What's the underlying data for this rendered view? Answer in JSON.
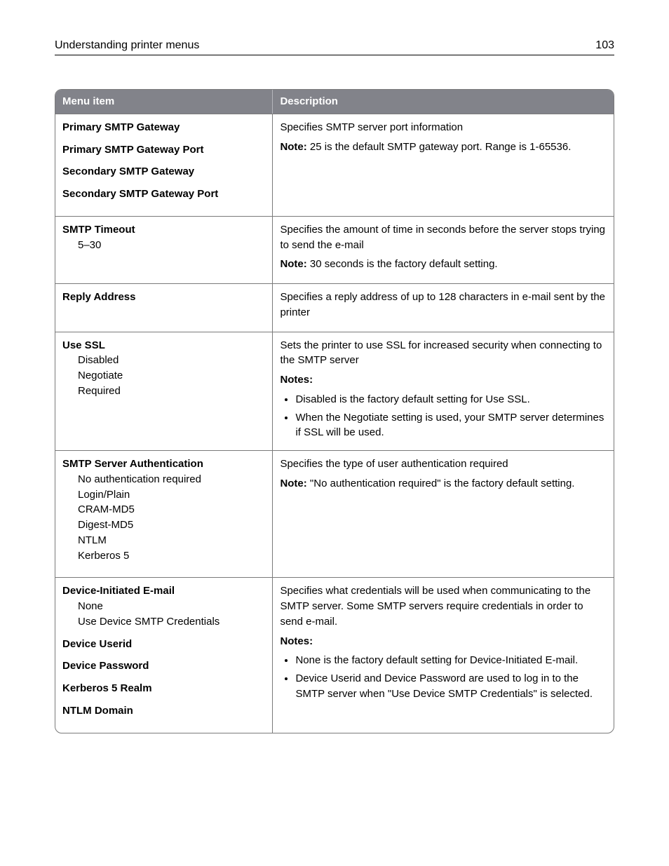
{
  "header": {
    "title": "Understanding printer menus",
    "page_number": "103"
  },
  "table": {
    "type": "table",
    "header_bg": "#82838a",
    "header_fg": "#ffffff",
    "border_color": "#7a7a7a",
    "columns": [
      {
        "label": "Menu item",
        "width_pct": 39
      },
      {
        "label": "Description",
        "width_pct": 61
      }
    ],
    "rows": [
      {
        "menu": [
          {
            "label": "Primary SMTP Gateway"
          },
          {
            "label": "Primary SMTP Gateway Port"
          },
          {
            "label": "Secondary SMTP Gateway"
          },
          {
            "label": "Secondary SMTP Gateway Port"
          }
        ],
        "desc": {
          "paras": [
            {
              "text": "Specifies SMTP server port information"
            },
            {
              "note": true,
              "label": "Note:",
              "text": " 25 is the default SMTP gateway port. Range is 1-65536."
            }
          ]
        }
      },
      {
        "menu": [
          {
            "label": "SMTP Timeout",
            "subs": [
              "5–30"
            ]
          }
        ],
        "desc": {
          "paras": [
            {
              "text": "Specifies the amount of time in seconds before the server stops trying to send the e-mail"
            },
            {
              "note": true,
              "label": "Note:",
              "text": " 30 seconds is the factory default setting."
            }
          ]
        }
      },
      {
        "menu": [
          {
            "label": "Reply Address"
          }
        ],
        "desc": {
          "paras": [
            {
              "text": "Specifies a reply address of up to 128 characters in e-mail sent by the printer"
            }
          ]
        }
      },
      {
        "menu": [
          {
            "label": "Use SSL",
            "subs": [
              "Disabled",
              "Negotiate",
              "Required"
            ]
          }
        ],
        "desc": {
          "paras": [
            {
              "text": "Sets the printer to use SSL for increased security when connecting to the SMTP server"
            },
            {
              "note": true,
              "label": "Notes:",
              "text": ""
            }
          ],
          "bullets": [
            "Disabled is the factory default setting for Use SSL.",
            "When the Negotiate setting is used, your SMTP server determines if SSL will be used."
          ]
        }
      },
      {
        "menu": [
          {
            "label": "SMTP Server Authentication",
            "subs": [
              "No authentication required",
              "Login/Plain",
              "CRAM-MD5",
              "Digest-MD5",
              "NTLM",
              "Kerberos 5"
            ]
          }
        ],
        "desc": {
          "paras": [
            {
              "text": "Specifies the type of user authentication required"
            },
            {
              "note": true,
              "label": "Note:",
              "text": " \"No authentication required\" is the factory default setting."
            }
          ]
        }
      },
      {
        "menu": [
          {
            "label": "Device-Initiated E-mail",
            "subs": [
              "None",
              "Use Device SMTP Credentials"
            ]
          },
          {
            "label": "Device Userid"
          },
          {
            "label": "Device Password"
          },
          {
            "label": "Kerberos 5 Realm"
          },
          {
            "label": "NTLM Domain"
          }
        ],
        "desc": {
          "paras": [
            {
              "text": "Specifies what credentials will be used when communicating to the SMTP server. Some SMTP servers require credentials in order to send e-mail."
            },
            {
              "note": true,
              "label": "Notes:",
              "text": ""
            }
          ],
          "bullets": [
            "None is the factory default setting for Device-Initiated E-mail.",
            "Device Userid and Device Password are used to log in to the SMTP server when \"Use Device SMTP Credentials\" is selected."
          ]
        }
      }
    ]
  }
}
